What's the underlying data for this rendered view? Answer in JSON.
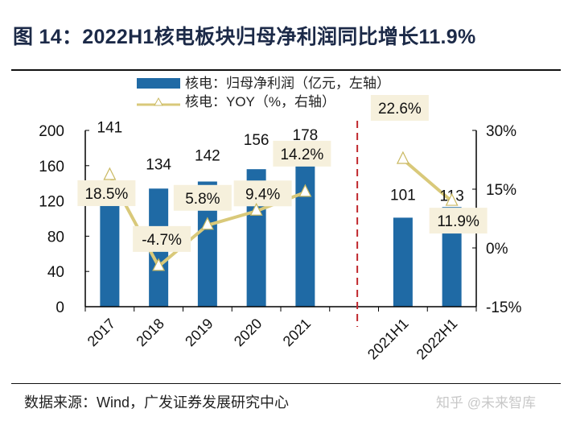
{
  "title": "图  14：2022H1核电板块归母净利润同比增长11.9%",
  "source": "数据来源：Wind，广发证券发展研究中心",
  "watermark": "知乎 @未来智库",
  "colors": {
    "bar": "#1f6aa5",
    "line": "#d9c97a",
    "label_box": "#f6f0dc",
    "divider": "#c0272d"
  },
  "chart_data": {
    "type": "bar+line",
    "categories": [
      "2017",
      "2018",
      "2019",
      "2020",
      "2021",
      "",
      "2021H1",
      "2022H1"
    ],
    "series": [
      {
        "name": "核电：归母净利润（亿元，左轴）",
        "type": "bar",
        "axis": "left",
        "values": [
          141,
          134,
          142,
          156,
          178,
          null,
          101,
          113
        ],
        "labels": [
          "141",
          "134",
          "142",
          "156",
          "178",
          "",
          "101",
          "113"
        ]
      },
      {
        "name": "核电：YOY（%，右轴）",
        "type": "line",
        "marker": "triangle",
        "axis": "right",
        "segments": [
          [
            0,
            4
          ],
          [
            6,
            7
          ]
        ],
        "values": [
          18.5,
          -4.7,
          5.8,
          9.4,
          14.2,
          null,
          22.6,
          11.9
        ],
        "labels": [
          "18.5%",
          "-4.7%",
          "5.8%",
          "9.4%",
          "14.2%",
          "",
          "22.6%",
          "11.9%"
        ]
      }
    ],
    "left_axis": {
      "range": [
        0,
        200
      ],
      "ticks": [
        "0",
        "40",
        "80",
        "120",
        "160",
        "200"
      ]
    },
    "right_axis": {
      "range": [
        -15,
        30
      ],
      "ticks": [
        "-15%",
        "0%",
        "15%",
        "30%"
      ]
    },
    "divider_between": [
      "2021",
      "2021H1"
    ],
    "legend": {
      "position": "top",
      "entries": [
        "核电：归母净利润（亿元，左轴）",
        "核电：YOY（%，右轴）"
      ]
    },
    "grid": false
  }
}
